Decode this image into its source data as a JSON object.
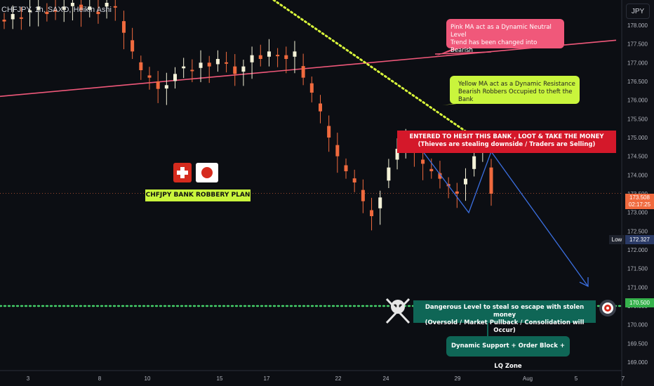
{
  "header": {
    "symbol_line": "CHFJPY, 1h, SAXO, Heikin Ashi",
    "currency_button": "JPY"
  },
  "y_axis_ticks": [
    "178.000",
    "177.500",
    "177.000",
    "176.500",
    "176.000",
    "175.500",
    "175.000",
    "174.500",
    "174.000",
    "173.500",
    "173.000",
    "172.500",
    "172.000",
    "171.500",
    "171.000",
    "170.500",
    "170.000",
    "169.500",
    "169.000"
  ],
  "x_axis_ticks": [
    "3",
    "8",
    "10",
    "15",
    "17",
    "22",
    "24",
    "29",
    "Aug",
    "5",
    "7"
  ],
  "price_labels": {
    "last_price": "173.508",
    "countdown": "02:17:25",
    "low_label": "Low",
    "low_value": "172.327",
    "level_value": "170.500"
  },
  "annotations": {
    "pink_ma": [
      "Pink MA act as a Dynamic Neutral Level",
      "Trend has been changed into Bearish"
    ],
    "yellow_ma": [
      "Yellow MA act as a Dynamic Resistance",
      "Bearish Robbers Occupied to theft the Bank"
    ],
    "entry": [
      "ENTERED TO HESIT THIS BANK , LOOT & TAKE THE MONEY",
      "(Thieves are stealing downside / Traders are Selling)"
    ],
    "danger": [
      "Dangerous Level to steal so escape with stolen money",
      "(Oversold / Market Pullback / Consolidation will Occur)"
    ],
    "support": "Dynamic Support + Order Block + LQ Zone",
    "plan": "CHFJPY BANK ROBBERY PLAN"
  },
  "colors": {
    "bull": "#f4f2d8",
    "bear": "#f06a3e",
    "pink_ma": "#f0587a",
    "yellow_ma": "#d8f53a",
    "support_line": "#45d16a",
    "arrow": "#3b6fe0",
    "background": "#0c0e13"
  },
  "icons": [
    "swiss-flag-icon",
    "japan-flag-icon",
    "skull-crossbones-icon",
    "target-icon"
  ],
  "chart_data": {
    "type": "candlestick",
    "ylim": [
      168.7,
      178.6
    ],
    "x_ticks": [
      "3",
      "8",
      "10",
      "15",
      "17",
      "22",
      "24",
      "29",
      "Aug",
      "5",
      "7"
    ],
    "candles_close_approx": [
      178.1,
      178.3,
      178.2,
      178.4,
      178.5,
      178.3,
      178.4,
      178.5,
      178.6,
      178.4,
      178.5,
      178.3,
      178.6,
      178.5,
      177.8,
      177.3,
      176.8,
      176.6,
      176.3,
      176.4,
      176.7,
      176.9,
      176.8,
      177.0,
      176.9,
      177.1,
      177.0,
      176.7,
      176.9,
      177.2,
      177.1,
      177.3,
      177.2,
      177.1,
      177.3,
      176.6,
      176.2,
      175.7,
      175.0,
      174.5,
      174.1,
      173.8,
      173.3,
      172.9,
      173.4,
      174.2,
      174.7,
      174.9,
      174.6,
      174.3,
      174.1,
      173.9,
      173.7,
      173.5,
      173.9,
      174.5,
      174.8,
      173.5
    ],
    "pink_ma": {
      "start": 176.1,
      "end": 177.6
    },
    "yellow_ma": {
      "start": 180.0,
      "end": 174.7
    },
    "support_level": 170.5,
    "current_price": 173.508,
    "low": 172.327,
    "projected_target": 171.0
  }
}
